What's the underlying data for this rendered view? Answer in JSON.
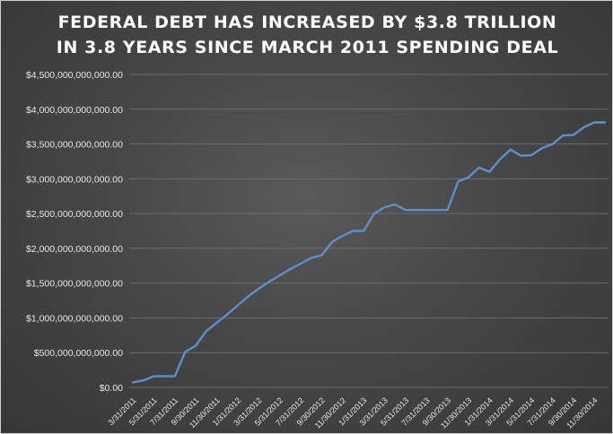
{
  "chart_data": {
    "type": "line",
    "title": "FEDERAL DEBT HAS INCREASED BY $3.8 TRILLION",
    "subtitle": "IN 3.8 YEARS SINCE MARCH 2011 SPENDING DEAL",
    "xlabel": "",
    "ylabel": "",
    "ylim": [
      0,
      4500000000000
    ],
    "grid": true,
    "legend": "none",
    "y_tick_labels": [
      "$0.00",
      "$500,000,000,000.00",
      "$1,000,000,000,000.00",
      "$1,500,000,000,000.00",
      "$2,000,000,000,000.00",
      "$2,500,000,000,000.00",
      "$3,000,000,000,000.00",
      "$3,500,000,000,000.00",
      "$4,000,000,000,000.00",
      "$4,500,000,000,000.00"
    ],
    "x_tick_labels": [
      "3/31/2011",
      "5/31/2011",
      "7/31/2011",
      "9/30/2011",
      "11/30/2011",
      "1/31/2012",
      "3/31/2012",
      "5/31/2012",
      "7/31/2012",
      "9/30/2012",
      "11/30/2012",
      "1/31/2013",
      "3/31/2013",
      "5/31/2013",
      "7/31/2013",
      "9/30/2013",
      "11/30/2013",
      "1/31/2014",
      "3/31/2014",
      "5/31/2014",
      "7/31/2014",
      "9/30/2014",
      "11/30/2014"
    ],
    "x": [
      "3/31/2011",
      "4/30/2011",
      "5/31/2011",
      "6/30/2011",
      "7/31/2011",
      "8/31/2011",
      "9/30/2011",
      "10/31/2011",
      "11/30/2011",
      "12/31/2011",
      "1/31/2012",
      "2/29/2012",
      "3/31/2012",
      "4/30/2012",
      "5/31/2012",
      "6/30/2012",
      "7/31/2012",
      "8/31/2012",
      "9/30/2012",
      "10/31/2012",
      "11/30/2012",
      "12/31/2012",
      "1/31/2013",
      "2/28/2013",
      "3/31/2013",
      "4/30/2013",
      "5/31/2013",
      "6/30/2013",
      "7/31/2013",
      "8/31/2013",
      "9/30/2013",
      "10/31/2013",
      "11/30/2013",
      "12/31/2013",
      "1/31/2014",
      "2/28/2014",
      "3/31/2014",
      "4/30/2014",
      "5/31/2014",
      "6/30/2014",
      "7/31/2014",
      "8/31/2014",
      "9/30/2014",
      "10/31/2014",
      "11/30/2014",
      "12/31/2014"
    ],
    "series": [
      {
        "values": [
          70000000000,
          100000000000,
          160000000000,
          160000000000,
          160000000000,
          510000000000,
          600000000000,
          810000000000,
          930000000000,
          1050000000000,
          1180000000000,
          1310000000000,
          1420000000000,
          1520000000000,
          1610000000000,
          1700000000000,
          1780000000000,
          1860000000000,
          1900000000000,
          2090000000000,
          2180000000000,
          2250000000000,
          2250000000000,
          2500000000000,
          2590000000000,
          2630000000000,
          2550000000000,
          2550000000000,
          2550000000000,
          2550000000000,
          2550000000000,
          2960000000000,
          3020000000000,
          3160000000000,
          3100000000000,
          3280000000000,
          3420000000000,
          3330000000000,
          3340000000000,
          3440000000000,
          3500000000000,
          3620000000000,
          3630000000000,
          3740000000000,
          3810000000000,
          3810000000000
        ]
      }
    ],
    "colors": {
      "line": "#5b8fd0",
      "background": "#454545",
      "grid": "#6c6c6c",
      "text": "#e6e6e6"
    }
  }
}
